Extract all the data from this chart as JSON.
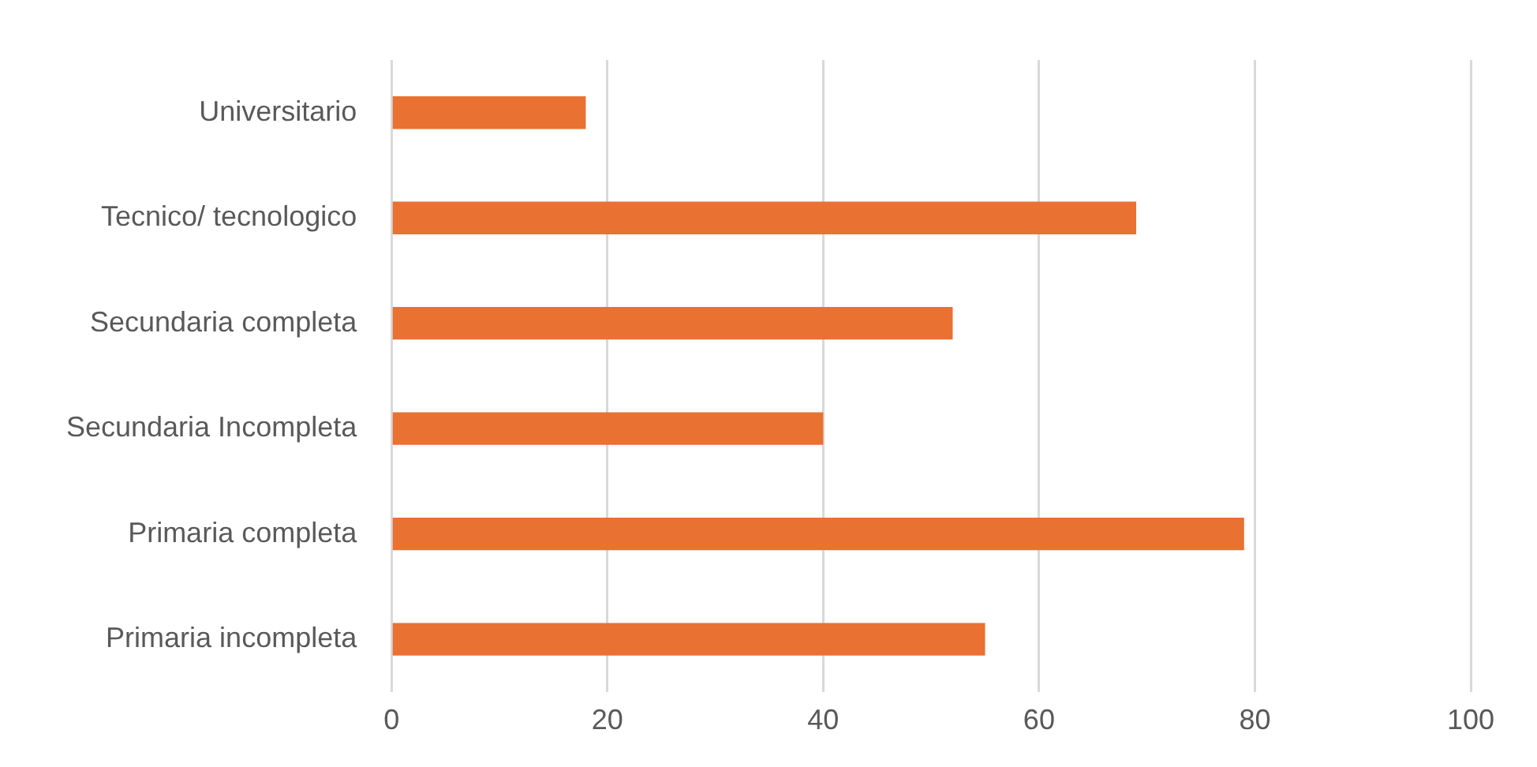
{
  "chart_data": {
    "type": "bar",
    "orientation": "horizontal",
    "categories": [
      "Universitario",
      "Tecnico/ tecnologico",
      "Secundaria completa",
      "Secundaria Incompleta",
      "Primaria completa",
      "Primaria incompleta"
    ],
    "values": [
      18,
      69,
      52,
      40,
      79,
      55
    ],
    "color": "#e97132",
    "xlim": [
      0,
      100
    ],
    "xticks": [
      0,
      20,
      40,
      60,
      80,
      100
    ],
    "grid": "x",
    "legend": false
  }
}
